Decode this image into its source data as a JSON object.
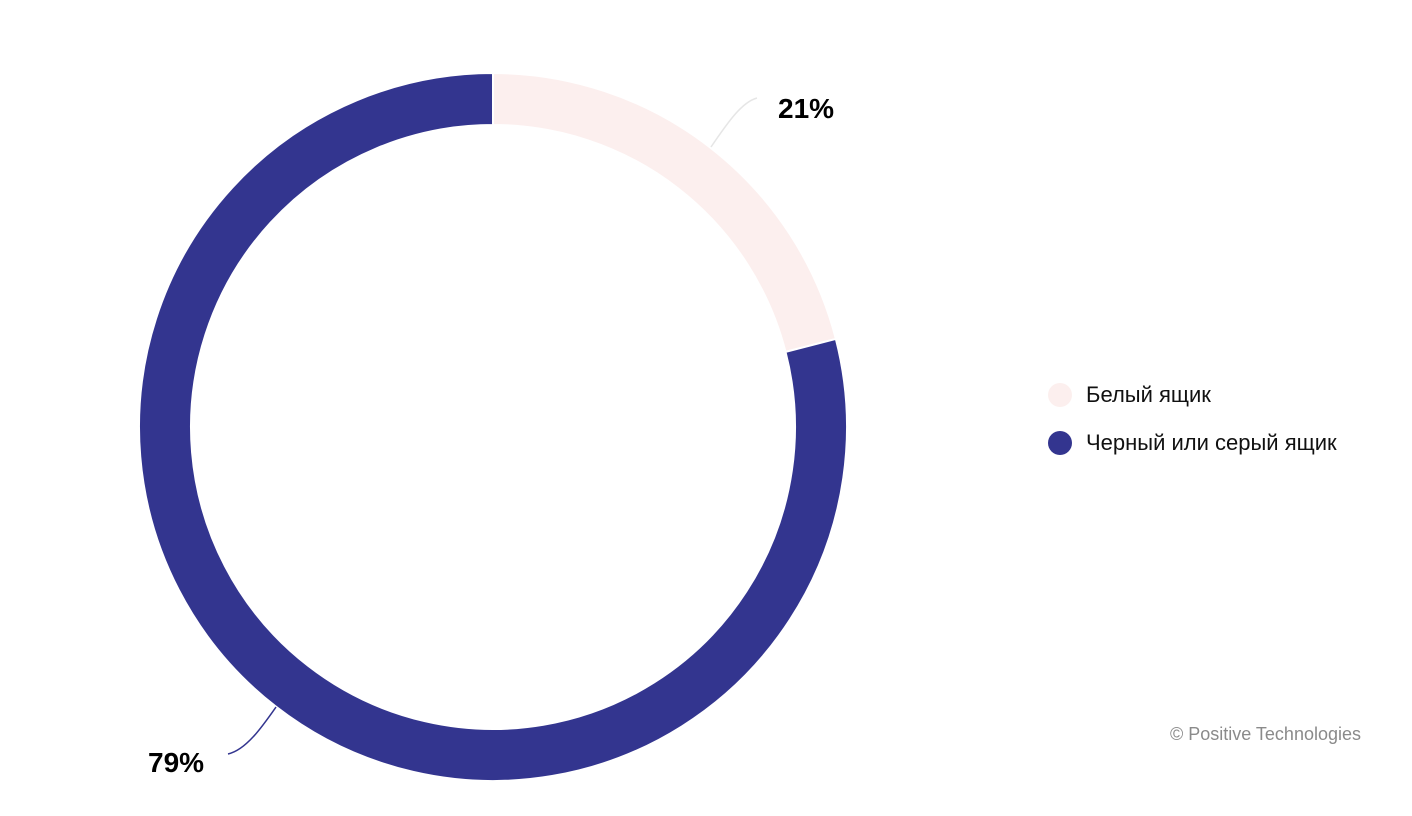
{
  "chart_data": {
    "type": "pie",
    "variant": "donut",
    "title": "",
    "series": [
      {
        "name": "Белый ящик",
        "value": 21,
        "label": "21%",
        "color": "#fcefee"
      },
      {
        "name": "Черный или серый ящик",
        "value": 79,
        "label": "79%",
        "color": "#33358f"
      }
    ],
    "legend_position": "right",
    "start_angle": "top",
    "direction": "clockwise"
  },
  "footer": {
    "credit": "© Positive Technologies"
  }
}
